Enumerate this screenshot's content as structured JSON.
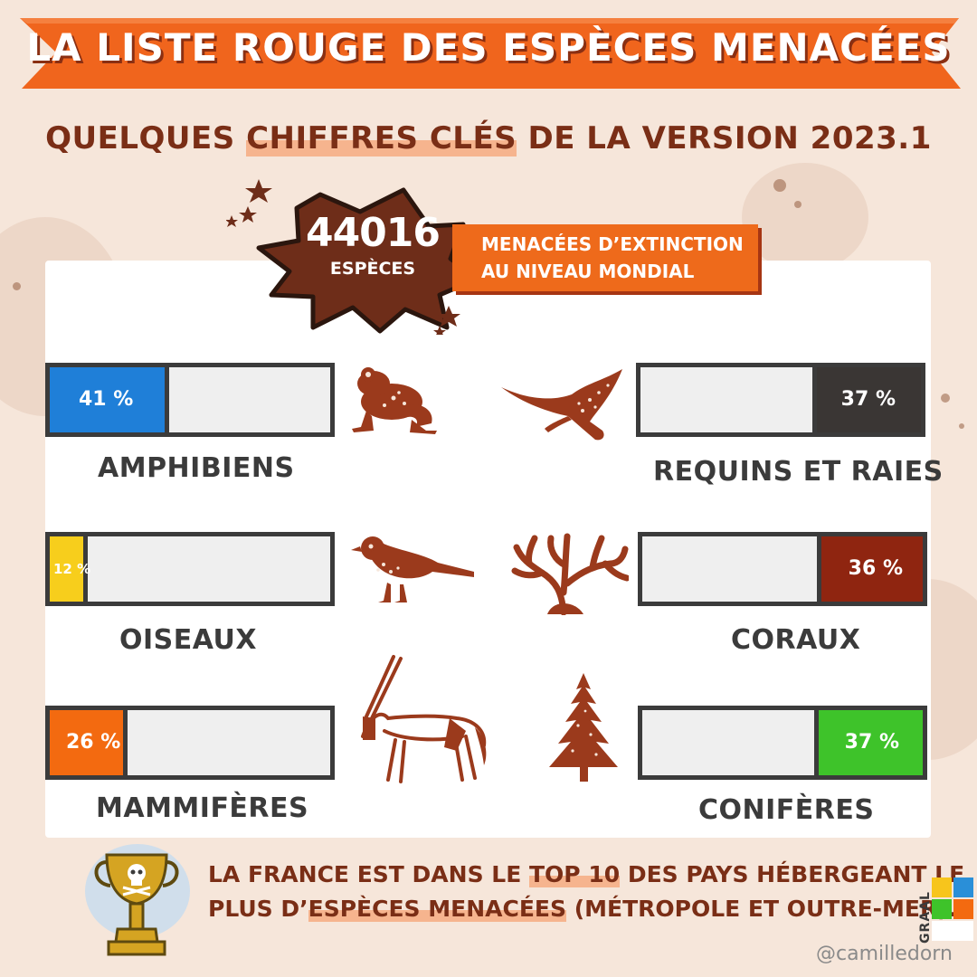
{
  "banner": {
    "title": "LA LISTE ROUGE DES ESPÈCES MENACÉES"
  },
  "subtitle": {
    "before": "QUELQUES ",
    "highlight": "CHIFFRES CLÉS",
    "after": " DE LA VERSION 2023.1"
  },
  "badge": {
    "number": "44016",
    "unit": "ESPÈCES"
  },
  "tag": {
    "line1": "MENACÉES D’EXTINCTION",
    "line2": "AU NIVEAU MONDIAL"
  },
  "groups": [
    {
      "label": "AMPHIBIENS",
      "percent_text": "41 %",
      "value": 41,
      "color": "#1f7fd8",
      "icon": "frog-icon"
    },
    {
      "label": "REQUINS ET RAIES",
      "percent_text": "37 %",
      "value": 37,
      "color": "#3a3634",
      "icon": "ray-icon"
    },
    {
      "label": "OISEAUX",
      "percent_text": "12 %",
      "value": 12,
      "color": "#f7ce1c",
      "icon": "bird-icon"
    },
    {
      "label": "CORAUX",
      "percent_text": "36 %",
      "value": 36,
      "color": "#8f2510",
      "icon": "coral-icon"
    },
    {
      "label": "MAMMIFÈRES",
      "percent_text": "26 %",
      "value": 26,
      "color": "#f36a10",
      "icon": "oryx-icon"
    },
    {
      "label": "CONIFÈRES",
      "percent_text": "37 %",
      "value": 37,
      "color": "#3ec32a",
      "icon": "conifer-icon"
    }
  ],
  "footer": {
    "l1_before": "LA FRANCE EST DANS LE ",
    "l1_highlight": "TOP 10",
    "l1_after": " DES PAYS HÉBERGEANT LE",
    "l2_before": "PLUS D’",
    "l2_highlight": "ESPÈCES MENACÉES",
    "l2_after": " (MÉTROPOLE ET OUTRE-MER)..."
  },
  "logo": {
    "text": "GRAAL"
  },
  "credit": "@camilledorn",
  "colors": {
    "background": "#f6e6da",
    "banner": "#f0651d",
    "brown": "#7a2e16",
    "icon_brown": "#9b3a1c"
  }
}
